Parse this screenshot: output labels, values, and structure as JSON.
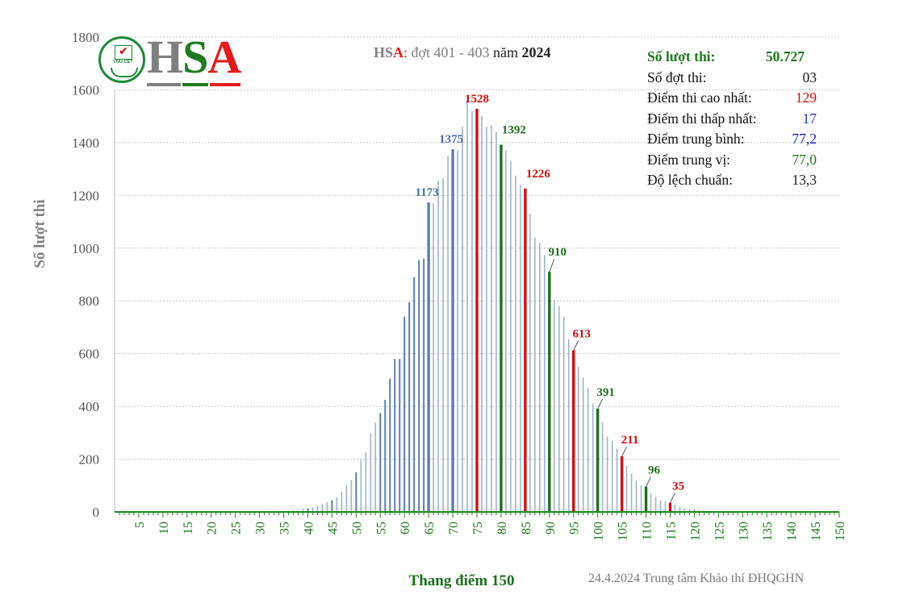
{
  "logo": {
    "h": "H",
    "s": "S",
    "a": "A",
    "sub": "VNU-CET"
  },
  "header": {
    "hsa_h": "HS",
    "hsa_a": "A",
    "colon": ":",
    "rounds": "đợt 401 - 403",
    "year_prefix": "năm",
    "year": "2024"
  },
  "stats": [
    {
      "label": "Số lượt thi:",
      "value": "50.727",
      "color": "#1f7a1f",
      "bold": true
    },
    {
      "label": "Số đợt thi:",
      "value": "03",
      "color": "#222222",
      "bold": false
    },
    {
      "label": "Điểm thi cao nhất:",
      "value": "129",
      "color": "#d01010",
      "bold": false
    },
    {
      "label": "Điểm thi thấp nhất:",
      "value": "17",
      "color": "#1f3f9a",
      "bold": false
    },
    {
      "label": "Điểm trung bình:",
      "value": "77,2",
      "color": "#1a1ab0",
      "bold": false
    },
    {
      "label": "Điểm trung vị:",
      "value": "77,0",
      "color": "#1f7a1f",
      "bold": false
    },
    {
      "label": "Độ lệch chuẩn:",
      "value": "13,3",
      "color": "#222222",
      "bold": false
    }
  ],
  "footer_note": "24.4.2024 Trung tâm Khảo thí ĐHQGHN",
  "chart_data": {
    "type": "bar",
    "xlabel": "Thang điểm 150",
    "ylabel": "Số lượt thi",
    "xlim": [
      0,
      150
    ],
    "ylim": [
      0,
      1800
    ],
    "y_ticks": [
      0,
      200,
      400,
      600,
      800,
      1000,
      1200,
      1400,
      1600,
      1800
    ],
    "x_ticks": [
      5,
      10,
      15,
      20,
      25,
      30,
      35,
      40,
      45,
      50,
      55,
      60,
      65,
      70,
      75,
      80,
      85,
      90,
      95,
      100,
      105,
      110,
      115,
      120,
      125,
      130,
      135,
      140,
      145,
      150
    ],
    "grid": "horizontal dotted",
    "colors": {
      "bar": "#5b7fb0",
      "bar_light": "#9fb4cf",
      "red": "#d01010",
      "green": "#1f6e1f",
      "blue_label": "#4a6fa5",
      "axis_x": "#1f8a1f",
      "tick_label_x": "#1f7a1f",
      "tick_label_y": "#555555"
    },
    "bars": [
      {
        "x": 35,
        "y": 3
      },
      {
        "x": 36,
        "y": 4
      },
      {
        "x": 37,
        "y": 6
      },
      {
        "x": 38,
        "y": 8
      },
      {
        "x": 39,
        "y": 12
      },
      {
        "x": 40,
        "y": 14
      },
      {
        "x": 41,
        "y": 18
      },
      {
        "x": 42,
        "y": 24
      },
      {
        "x": 43,
        "y": 30
      },
      {
        "x": 44,
        "y": 38
      },
      {
        "x": 45,
        "y": 44
      },
      {
        "x": 46,
        "y": 56
      },
      {
        "x": 47,
        "y": 76
      },
      {
        "x": 48,
        "y": 100
      },
      {
        "x": 49,
        "y": 120
      },
      {
        "x": 50,
        "y": 150
      },
      {
        "x": 51,
        "y": 198
      },
      {
        "x": 52,
        "y": 225
      },
      {
        "x": 53,
        "y": 298
      },
      {
        "x": 54,
        "y": 338
      },
      {
        "x": 55,
        "y": 375
      },
      {
        "x": 56,
        "y": 425
      },
      {
        "x": 57,
        "y": 505
      },
      {
        "x": 58,
        "y": 580
      },
      {
        "x": 59,
        "y": 580
      },
      {
        "x": 60,
        "y": 740
      },
      {
        "x": 61,
        "y": 795
      },
      {
        "x": 62,
        "y": 890
      },
      {
        "x": 63,
        "y": 955
      },
      {
        "x": 64,
        "y": 960
      },
      {
        "x": 65,
        "y": 1173
      },
      {
        "x": 66,
        "y": 1170
      },
      {
        "x": 67,
        "y": 1255
      },
      {
        "x": 68,
        "y": 1265
      },
      {
        "x": 69,
        "y": 1350
      },
      {
        "x": 70,
        "y": 1375
      },
      {
        "x": 71,
        "y": 1370
      },
      {
        "x": 72,
        "y": 1460
      },
      {
        "x": 73,
        "y": 1575
      },
      {
        "x": 74,
        "y": 1520
      },
      {
        "x": 75,
        "y": 1528
      },
      {
        "x": 76,
        "y": 1500
      },
      {
        "x": 77,
        "y": 1460
      },
      {
        "x": 78,
        "y": 1465
      },
      {
        "x": 79,
        "y": 1440
      },
      {
        "x": 80,
        "y": 1392
      },
      {
        "x": 81,
        "y": 1370
      },
      {
        "x": 82,
        "y": 1330
      },
      {
        "x": 83,
        "y": 1275
      },
      {
        "x": 84,
        "y": 1240
      },
      {
        "x": 85,
        "y": 1226
      },
      {
        "x": 86,
        "y": 1130
      },
      {
        "x": 87,
        "y": 1040
      },
      {
        "x": 88,
        "y": 1020
      },
      {
        "x": 89,
        "y": 975
      },
      {
        "x": 90,
        "y": 910
      },
      {
        "x": 91,
        "y": 805
      },
      {
        "x": 92,
        "y": 780
      },
      {
        "x": 93,
        "y": 740
      },
      {
        "x": 94,
        "y": 655
      },
      {
        "x": 95,
        "y": 613
      },
      {
        "x": 96,
        "y": 550
      },
      {
        "x": 97,
        "y": 510
      },
      {
        "x": 98,
        "y": 470
      },
      {
        "x": 99,
        "y": 410
      },
      {
        "x": 100,
        "y": 391
      },
      {
        "x": 101,
        "y": 340
      },
      {
        "x": 102,
        "y": 285
      },
      {
        "x": 103,
        "y": 270
      },
      {
        "x": 104,
        "y": 240
      },
      {
        "x": 105,
        "y": 211
      },
      {
        "x": 106,
        "y": 175
      },
      {
        "x": 107,
        "y": 145
      },
      {
        "x": 108,
        "y": 120
      },
      {
        "x": 109,
        "y": 100
      },
      {
        "x": 110,
        "y": 96
      },
      {
        "x": 111,
        "y": 70
      },
      {
        "x": 112,
        "y": 58
      },
      {
        "x": 113,
        "y": 44
      },
      {
        "x": 114,
        "y": 40
      },
      {
        "x": 115,
        "y": 35
      },
      {
        "x": 116,
        "y": 28
      },
      {
        "x": 117,
        "y": 20
      },
      {
        "x": 118,
        "y": 14
      },
      {
        "x": 119,
        "y": 10
      },
      {
        "x": 120,
        "y": 8
      },
      {
        "x": 121,
        "y": 6
      },
      {
        "x": 122,
        "y": 5
      },
      {
        "x": 123,
        "y": 4
      },
      {
        "x": 124,
        "y": 3
      }
    ],
    "highlights": [
      {
        "x": 65,
        "y": 1173,
        "label": "1173",
        "color": "blue"
      },
      {
        "x": 70,
        "y": 1375,
        "label": "1375",
        "color": "blue"
      },
      {
        "x": 75,
        "y": 1528,
        "label": "1528",
        "color": "red"
      },
      {
        "x": 80,
        "y": 1392,
        "label": "1392",
        "color": "green"
      },
      {
        "x": 85,
        "y": 1226,
        "label": "1226",
        "color": "red"
      },
      {
        "x": 90,
        "y": 910,
        "label": "910",
        "color": "green"
      },
      {
        "x": 95,
        "y": 613,
        "label": "613",
        "color": "red"
      },
      {
        "x": 100,
        "y": 391,
        "label": "391",
        "color": "green"
      },
      {
        "x": 105,
        "y": 211,
        "label": "211",
        "color": "red"
      },
      {
        "x": 110,
        "y": 96,
        "label": "96",
        "color": "green"
      },
      {
        "x": 115,
        "y": 35,
        "label": "35",
        "color": "red"
      }
    ]
  }
}
